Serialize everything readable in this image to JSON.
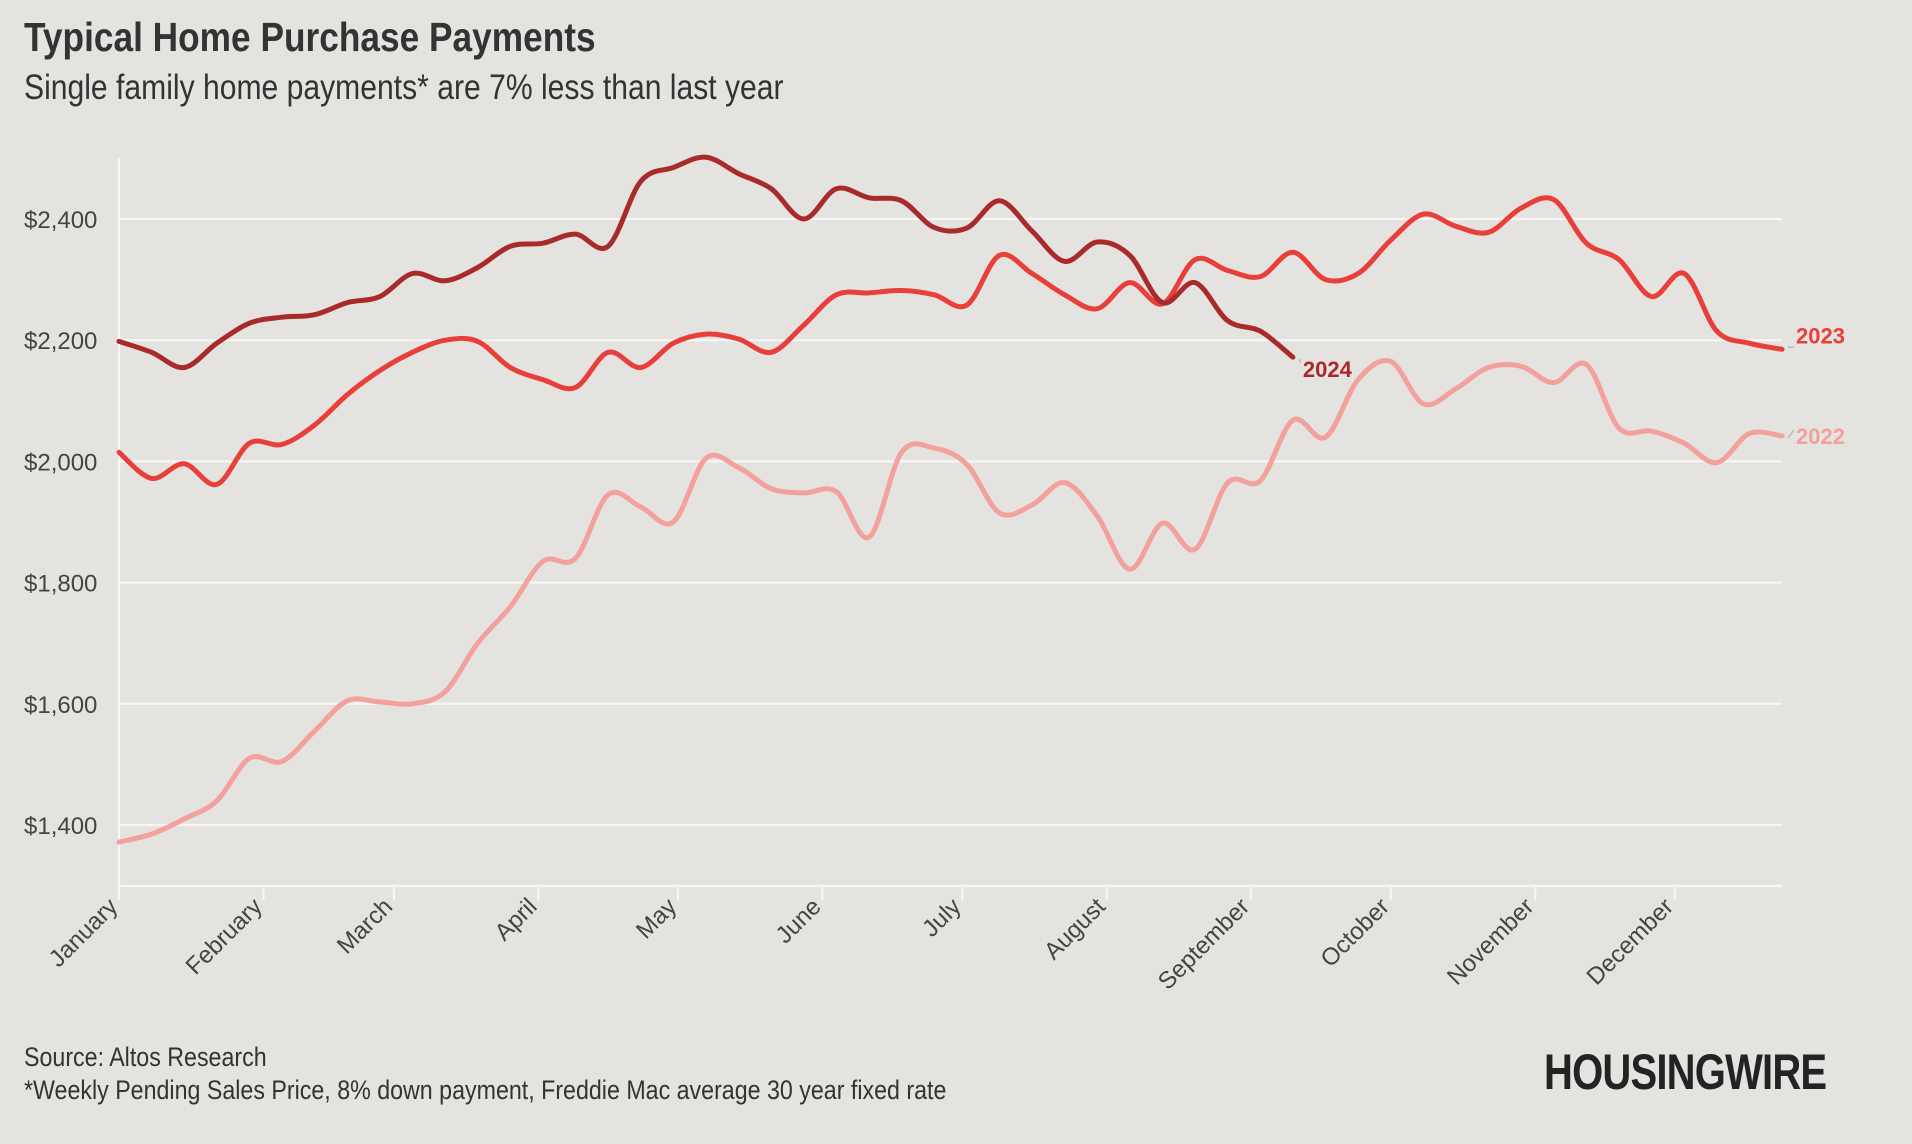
{
  "header": {
    "title": "Typical Home Purchase Payments",
    "subtitle": "Single family home payments* are 7% less than last year"
  },
  "footer": {
    "source": "Source: Altos Research",
    "footnote": "*Weekly Pending Sales Price, 8% down payment, Freddie Mac average 30 year fixed rate",
    "logo": "HOUSINGWIRE"
  },
  "colors": {
    "background": "#e5e3e0",
    "grid": "#f7f6f4",
    "series_2022": "#f3a19c",
    "series_2023": "#e83f3a",
    "series_2024": "#a82a2a"
  },
  "chart_data": {
    "type": "line",
    "title": "Typical Home Purchase Payments",
    "subtitle": "Single family home payments* are 7% less than last year",
    "xlabel": "",
    "ylabel": "",
    "x_unit": "week of year",
    "x_range": [
      1,
      52
    ],
    "ylim": [
      1300,
      2500
    ],
    "y_ticks": [
      1400,
      1600,
      1800,
      2000,
      2200,
      2400
    ],
    "y_tick_labels": [
      "$1,400",
      "$1,600",
      "$1,800",
      "$2,000",
      "$2,200",
      "$2,400"
    ],
    "month_ticks": [
      {
        "label": "January",
        "week": 1
      },
      {
        "label": "February",
        "week": 5.43
      },
      {
        "label": "March",
        "week": 9.43
      },
      {
        "label": "April",
        "week": 13.86
      },
      {
        "label": "May",
        "week": 18.14
      },
      {
        "label": "June",
        "week": 22.57
      },
      {
        "label": "July",
        "week": 26.86
      },
      {
        "label": "August",
        "week": 31.29
      },
      {
        "label": "September",
        "week": 35.71
      },
      {
        "label": "October",
        "week": 40
      },
      {
        "label": "November",
        "week": 44.43
      },
      {
        "label": "December",
        "week": 48.71
      }
    ],
    "grid": true,
    "series": [
      {
        "name": "2022",
        "color": "#f3a19c",
        "values": [
          1372,
          1385,
          1410,
          1440,
          1510,
          1505,
          1555,
          1605,
          1603,
          1600,
          1620,
          1700,
          1760,
          1835,
          1840,
          1945,
          1925,
          1900,
          2005,
          1990,
          1955,
          1948,
          1950,
          1875,
          2015,
          2022,
          1995,
          1915,
          1928,
          1965,
          1910,
          1822,
          1898,
          1855,
          1965,
          1968,
          2068,
          2040,
          2135,
          2165,
          2095,
          2120,
          2155,
          2157,
          2130,
          2160,
          2055,
          2050,
          2030,
          1998,
          2046,
          2042
        ]
      },
      {
        "name": "2023",
        "color": "#e83f3a",
        "values": [
          2015,
          1972,
          1996,
          1962,
          2030,
          2028,
          2060,
          2110,
          2150,
          2180,
          2200,
          2198,
          2155,
          2135,
          2122,
          2180,
          2155,
          2195,
          2210,
          2202,
          2180,
          2225,
          2275,
          2278,
          2282,
          2275,
          2258,
          2340,
          2310,
          2275,
          2252,
          2295,
          2260,
          2333,
          2315,
          2305,
          2345,
          2300,
          2310,
          2365,
          2408,
          2388,
          2378,
          2418,
          2432,
          2360,
          2333,
          2272,
          2310,
          2215,
          2195,
          2185
        ]
      },
      {
        "name": "2024",
        "color": "#a82a2a",
        "values": [
          2198,
          2180,
          2155,
          2195,
          2228,
          2238,
          2242,
          2262,
          2272,
          2310,
          2298,
          2320,
          2355,
          2360,
          2375,
          2355,
          2462,
          2485,
          2502,
          2475,
          2450,
          2400,
          2450,
          2435,
          2430,
          2386,
          2385,
          2430,
          2380,
          2330,
          2362,
          2340,
          2262,
          2295,
          2232,
          2215,
          2172
        ]
      }
    ],
    "annotations": [
      {
        "text": "2024",
        "series": "2024"
      },
      {
        "text": "2023",
        "series": "2023"
      },
      {
        "text": "2022",
        "series": "2022"
      }
    ]
  }
}
